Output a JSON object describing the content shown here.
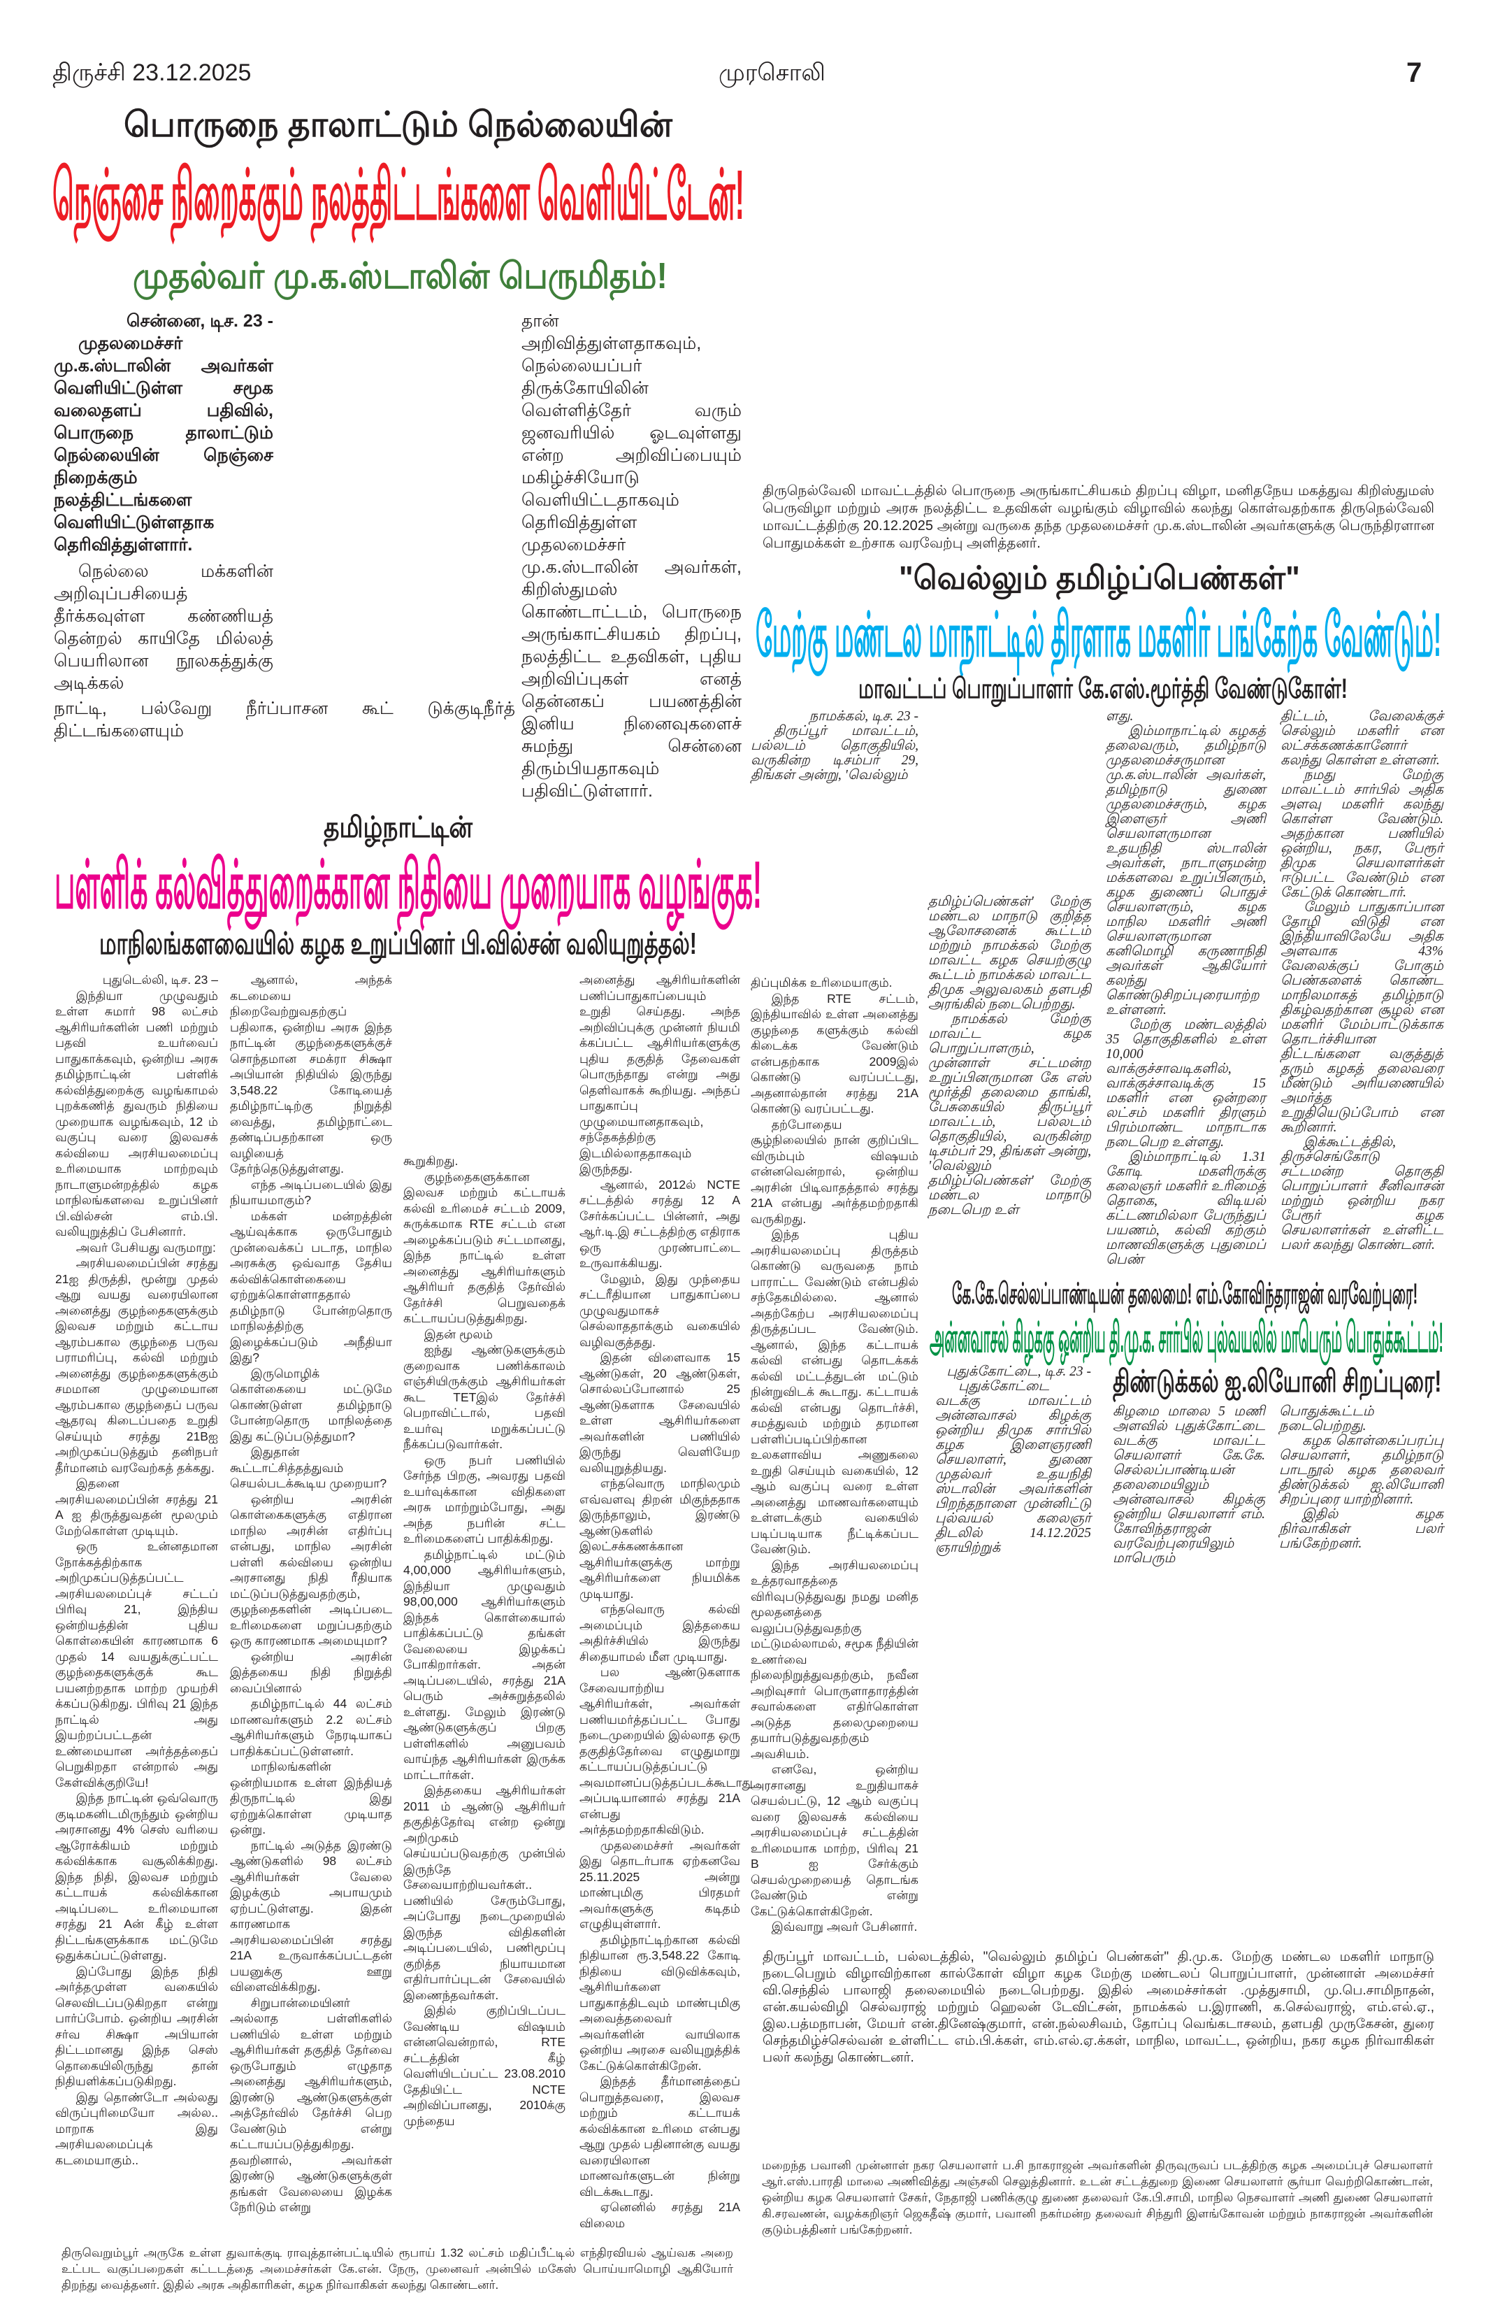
{
  "header": {
    "edition_date": "திருச்சி   23.12.2025",
    "masthead": "முரசொலி",
    "page_number": "7"
  },
  "colors": {
    "red_headline": "#ED1C24",
    "green_subhead": "#3F7F3A",
    "pink_headline": "#EC008C",
    "blue_headline": "#00AEEF",
    "green_headline": "#009245"
  },
  "story_nellai": {
    "kicker": "பொருநை தாலாட்டும் நெல்லையின்",
    "headline": "நெஞ்சை நிறைக்கும் நலத்திட்டங்களை வெளியிட்டேன்!",
    "subhead": "முதல்வர் மு.க.ஸ்டாலின் பெருமிதம்!",
    "dateline": "சென்னை, டிச. 23 -",
    "lead": "முதலமைச்சர் மு.க.ஸ்டாலின் அவர்கள் வெளியிட்டுள்ள சமூக வலைதளப் பதிவில், பொருநை தாலாட்டும் நெல்லையின் நெஞ்சை நிறைக்கும் நலத்திட்டங்களை வெளியிட்டுள்ளதாக தெரிவித்துள்ளார்.",
    "para1": "நெல்லை மக்களின் அறிவுப்பசியைத் தீர்க்கவுள்ள கண்ணியத் தென்றல் காயிதே மில்லத் பெயரிலான நூலகத்துக்கு அடிக்கல்",
    "span_line": "நாட்டி, பல்வேறு நீர்ப்பாசன கூட் டுக்குடிநீர்த் திட்டங்களையும்",
    "col2": "தான் அறிவித்துள்ளதாகவும், நெல்லையப்பர் திருக்கோயிலின் வெள்ளித்தேர் வரும் ஜனவரியில் ஓடவுள்ளது என்ற அறிவிப்பையும் மகிழ்ச்சியோடு வெளியிட்டதாகவும் தெரிவித்துள்ள முதலமைச்சர் மு.க.ஸ்டாலின் அவர்கள், கிறிஸ்துமஸ் கொண்டாட்டம், பொருநை அருங்காட்சியகம் திறப்பு, நலத்திட்ட உதவிகள், புதிய அறிவிப்புகள் எனத் தென்னகப் பயணத்தின் இனிய நினைவுகளைச் சுமந்து சென்னை திரும்பியதாகவும் பதிவிட்டுள்ளார்."
  },
  "photo_caption_nellai": "திருநெல்வேலி மாவட்டத்தில் பொருநை அருங்காட்சியகம் திறப்பு விழா, மனிதநேய மகத்துவ கிறிஸ்துமஸ் பெருவிழா மற்றும் அரசு நலத்திட்ட உதவிகள் வழங்கும் விழாவில் கலந்து கொள்வதற்காக திருநெல்வேலி மாவட்டத்திற்கு 20.12.2025 அன்று வருகை தந்த முதலமைச்சர் மு.க.ஸ்டாலின் அவர்களுக்கு பெருந்திரளான பொதுமக்கள் உற்சாக வரவேற்பு அளித்தனர்.",
  "story_wilson": {
    "kicker": "தமிழ்நாட்டின்",
    "headline": "பள்ளிக் கல்வித்துறைக்கான நிதியை முறையாக வழங்குக!",
    "subhead": "மாநிலங்களவையில் கழக உறுப்பினர் பி.வில்சன் வலியுறுத்தல்!",
    "col1": [
      "புதுடெல்லி, டிச. 23 –",
      "இந்தியா முழுவதும் உள்ள சுமார் 98 லட்சம் ஆசிரியர்களின் பணி மற்றும் பதவி உயர்வைப் பாதுகாக்கவும், ஒன்றிய அரசு தமிழ்நாட்டின் பள்ளிக் கல்வித்துறைக்கு வழங்காமல் புறக்கணித் துவரும் நிதியை முறையாக வழங்கவும், 12 ம் வகுப்பு வரை இலவசக் கல்வியை அரசியலமைப்பு உரிமையாக மாற்றவும் நாடாளுமன்றத்தில் கழக மாநிலங்களவை உறுப்பினர் பி.வில்சன் எம்.பி. வலியுறுத்திப் பேசினார்.",
      "அவர் பேசியது வருமாறு:",
      "அரசியலமைப்பின் சரத்து 21ஐ திருத்தி, மூன்று முதல் ஆறு வயது வரையிலான அனைத்து குழந்தைகளுக்கும் இலவச மற்றும் கட்டாய ஆரம்பகால குழந்தை பருவ பராமரிப்பு, கல்வி மற்றும் அனைத்து குழந்தைகளுக்கும் சமமான முழுமையான ஆரம்பகால குழந்தைப் பருவ ஆதரவு கிடைப்பதை உறுதி செய்யும் சரத்து 21Bஐ அறிமுகப்படுத்தும் தனிநபர் தீர்மானம் வரவேற்கத் தக்கது.",
      "இதனை அரசியலமைப்பின் சரத்து 21 A ஐ திருத்துவதன் மூலமும் மேற்கொள்ள முடியும்.",
      "ஒரு உன்னதமான நோக்கத்திற்காக அறிமுகப்படுத்தப்பட்ட அரசியலமைப்புச் சட்டப் பிரிவு 21, இந்திய ஒன்றியத்தின் புதிய கொள்கையின் காரணமாக 6 முதல் 14 வயதுக்குட்பட்ட குழந்தைகளுக்குக் கூட பயனற்றதாக மாற்ற முயற்சி க்கப்படுகிறது. பிரிவு 21 இந்த நாட்டில் அது இயற்றப்பட்டதன் உண்மையான அர்த்தத்தைப் பெறுகிறதா என்றால் அது கேள்விக்குறியே!",
      "இந்த நாட்டின் ஒவ்வொரு குடிமகனிடமிருந்தும் ஒன்றிய அரசானது 4% செஸ் வரியை ஆரோக்கியம் மற்றும் கல்விக்காக வசூலிக்கிறது. இந்த நிதி, இலவச மற்றும் கட்டாயக் கல்விக்கான அடிப்படை உரிமையான சரத்து 21 Aன் கீழ் உள்ள திட்டங்களுக்காக மட்டுமே ஒதுக்கப்பட்டுள்ளது.",
      "இப்போது இந்த நிதி அர்த்தமுள்ள வகையில் செலவிடப்படுகிறதா என்று பார்ப்போம். ஒன்றிய அரசின் சர்வ சிக்ஷா அபியான் திட்டமானது இந்த செஸ் தொகையிலிருந்து தான் நிதியளிக்கப்படுகிறது.",
      "இது தொண்டோ அல்லது விருப்புரிமையோ அல்ல.. மாறாக இது அரசியலமைப்புக் கடமையாகும்.."
    ],
    "col2": [
      "ஆனால், அந்தக் கடமையை நிறைவேற்றுவதற்குப் பதிலாக, ஒன்றிய அரசு இந்த நாட்டின் குழந்தைகளுக்குச் சொந்தமான சமக்ரா சிக்ஷா அபியான் நிதியில் இருந்து 3,548.22 கோடியைத் தமிழ்நாட்டிற்கு நிறுத்தி வைத்து, தமிழ்நாட்டை தண்டிப்பதற்கான ஒரு வழியைத் தேர்ந்தெடுத்துள்ளது.",
      "எந்த அடிப்படையில் இது நியாயமாகும்?",
      "மக்கள் மன்றத்தின் ஆய்வுக்காக ஒருபோதும் முன்வைக்கப் படாத, மாநில அரசுக்கு ஒவ்வாத தேசிய கல்விக்கொள்கையை ஏற்றுக்கொள்ளாததால் தமிழ்நாடு போன்றதொரு மாநிலத்திற்கு இழைக்கப்படும் அநீதியா இது?",
      "இருமொழிக் கொள்கையை மட்டுமே கொண்டுள்ள தமிழ்நாடு போன்றதொரு மாநிலத்தை இது கட்டுப்படுத்துமா?",
      "இதுதான் கூட்டாட்சித்தத்துவம் செயல்படக்கூடிய முறையா?",
      "ஒன்றிய அரசின் கொள்கைகளுக்கு எதிரான மாநில அரசின் எதிர்ப்பு என்பது, மாநில அரசின் பள்ளி கல்வியை ஒன்றிய அரசானது நிதி ரீதியாக மட்டுப்படுத்துவதற்கும், குழந்தைகளின் அடிப்படை உரிமைகளை மறுப்பதற்கும் ஒரு காரணமாக அமையுமா?",
      "ஒன்றிய அரசின் இத்தகைய நிதி நிறுத்தி வைப்பினால்",
      "தமிழ்நாட்டில் 44 லட்சம் மாணவர்களும் 2.2 லட்சம் ஆசிரியர்களும் நேரடியாகப் பாதிக்கப்பட்டுள்ளனர்.",
      "மாநிலங்களின் ஒன்றியமாக உள்ள இந்தியத் திருநாட்டில் இது ஏற்றுக்கொள்ள முடியாத ஒன்று.",
      "நாட்டில் அடுத்த இரண்டு ஆண்டுகளில் 98 லட்சம் ஆசிரியர்கள் வேலை இழக்கும் அபாயமும் ஏற்பட்டுள்ளது. இதன் காரணமாக அரசியலமைப்பின் சரத்து 21A உருவாக்கப்பட்டதன் பயனுக்கு ஊறு விளைவிக்கிறது.",
      "சிறுபான்மையினர் அல்லாத பள்ளிகளில் பணியில் உள்ள மற்றும் ஆசிரியர்கள் தகுதித் தேர்வை ஒருபோதும் எழுதாத அனைத்து ஆசிரியர்களும், இரண்டு ஆண்டுகளுக்குள் அத்தேர்வில் தேர்ச்சி பெற வேண்டும் என்று கட்டாயப்படுத்துகிறது. தவறினால், அவர்கள் இரண்டு ஆண்டுகளுக்குள் தங்கள் வேலையை இழக்க நேரிடும் என்று"
    ],
    "col3": [
      "கூறுகிறது.",
      "குழந்தைகளுக்கான இலவச மற்றும் கட்டாயக் கல்வி உரிமைச் சட்டம் 2009, சுருக்கமாக RTE சட்டம் என அழைக்கப்படும் சட்டமானது, இந்த நாட்டில் உள்ள அனைத்து ஆசிரியர்களும் ஆசிரியர் தகுதித் தேர்வில் தேர்ச்சி பெறுவதைக் கட்டாயப்படுத்துகிறது.",
      "இதன் மூலம்",
      "ஐந்து ஆண்டுகளுக்கும் குறைவாக பணிக்காலம் எஞ்சியிருக்கும் ஆசிரியர்கள் கூட TETஇல் தேர்ச்சி பெறாவிட்டால், பதவி உயர்வு மறுக்கப்பட்டு நீக்கப்படுவார்கள்.",
      "ஒரு நபர் பணியில் சேர்ந்த பிறகு, அவரது பதவி உயர்வுக்கான விதிகளை அரசு மாற்றும்போது, அது அந்த நபரின் சட்ட உரிமைகளைப் பாதிக்கிறது.",
      "தமிழ்நாட்டில் மட்டும் 4,00,000 ஆசிரியர்களும், இந்தியா முழுவதும் 98,00,000 ஆசிரியர்களும் இந்தக் கொள்கையால் பாதிக்கப்பட்டு தங்கள் வேலையை இழக்கப் போகிறார்கள். அதன் அடிப்படையில், சரத்து 21A பெரும் அச்சுறுத்தலில் உள்ளது. மேலும் இரண்டு ஆண்டுகளுக்குப் பிறகு பள்ளிகளில் அனுபவம் வாய்ந்த ஆசிரியர்கள் இருக்க மாட்டார்கள்.",
      "இத்தகைய ஆசிரியர்கள் 2011 ம் ஆண்டு ஆசிரியர் தகுதித்தேர்வு என்ற ஒன்று அறிமுகம் செய்யப்படுவதற்கு முன்பில் இருந்தே சேவையாற்றியவர்கள்.. பணியில் சேரும்போது, அப்போது நடைமுறையில் இருந்த விதிகளின் அடிப்படையில், பணிமூப்பு குறித்த நியாயமான எதிர்பார்ப்புடன் சேவையில் இணைந்தவர்கள்.",
      "இதில் குறிப்பிடப்பட வேண்டிய விஷயம் என்னவென்றால், RTE சட்டத்தின் கீழ் வெளியிடப்பட்ட 23.08.2010 தேதியிட்ட NCTE அறிவிப்பானது, 2010க்கு முந்தைய"
    ],
    "col4": [
      "அனைத்து ஆசிரியர்களின் பணிப்பாதுகாப்பையும் உறுதி செய்தது. அந்த அறிவிப்புக்கு முன்னர் நியமி க்கப்பட்ட ஆசிரியர்களுக்கு புதிய தகுதித் தேவைகள் பொருந்தாது என்று அது தெளிவாகக் கூறியது. அந்தப் பாதுகாப்பு முழுமையானதாகவும், சந்தேகத்திற்கு இடமில்லாததாகவும் இருந்தது.",
      "ஆனால், 2012ல் NCTE சட்டத்தில் சரத்து 12 A சேர்க்கப்பட்ட பின்னர், அது ஆர்.டி.இ சட்டத்திற்கு எதிராக ஒரு முரண்பாட்டை உருவாக்கியது.",
      "மேலும், இது முந்தைய சட்டரீதியான பாதுகாப்பை முழுவதுமாகச் செல்லாததாக்கும் வகையில் வழிவகுத்தது.",
      "இதன் விளைவாக 15 ஆண்டுகள், 20 ஆண்டுகள், சொல்லப்போனால் 25 ஆண்டுகளாக சேவையில் உள்ள ஆசிரியர்களை அவர்களின் பணியில் இருந்து வெளியேற வலியுறுத்தியது.",
      "எந்தவொரு மாநிலமும் எவ்வளவு திறன் மிகுந்ததாக இருந்தாலும், இரண்டு ஆண்டுகளில் இலட்சக்கணக்கான ஆசிரியர்களுக்கு மாற்று ஆசிரியர்களை நியமிக்க முடியாது.",
      "எந்தவொரு கல்வி அமைப்பும் இத்தகைய அதிர்ச்சியில் இருந்து சிதையாமல் மீள முடியாது.",
      "பல ஆண்டுகளாக சேவையாற்றிய ஆசிரியர்கள், அவர்கள் பணியமர்த்தப்பட்ட போது நடைமுறையில் இல்லாத ஒரு தகுதித்தேர்வை எழுதுமாறு கட்டாயப்படுத்தப்பட்டு அவமானப்படுத்தப்படக்கூடாது. அப்படியானால் சரத்து 21A என்பது அர்த்தமற்றதாகிவிடும்.",
      "முதலமைச்சர் அவர்கள் இது தொடர்பாக ஏற்கனவே 25.11.2025 அன்று மாண்புமிகு பிரதமர் அவர்களுக்கு கடிதம் எழுதியுள்ளார்.",
      "தமிழ்நாட்டிற்கான கல்வி நிதியான ரூ.3,548.22 கோடி நிதியை விடுவிக்கவும், ஆசிரியர்களை பாதுகாத்திடவும் மாண்புமிகு அவைத்தலைவர் அவர்களின் வாயிலாக ஒன்றிய அரசை வலியுறுத்திக் கேட்டுக்கொள்கிறேன்.",
      "இந்தத் தீர்மானத்தைப் பொறுத்தவரை, இலவச மற்றும் கட்டாயக் கல்விக்கான உரிமை என்பது ஆறு முதல் பதினான்கு வயது வரையிலான மாணவர்களுடன் நின்று விடக்கூடாது.",
      "ஏனெனில் சரத்து 21A விலைம"
    ],
    "col5": [
      "திப்புமிக்க உரிமையாகும்.",
      "இந்த RTE சட்டம், இந்தியாவில் உள்ள அனைத்து குழந்தை களுக்கும் கல்வி கிடைக்க வேண்டும் என்பதற்காக 2009இல் கொண்டு வரப்பட்டது, அதனால்தான் சரத்து 21A கொண்டு வரப்பட்டது.",
      "தற்போதைய சூழ்நிலையில் நான் குறிப்பிட விரும்பும் விஷயம் என்னவென்றால், ஒன்றிய அரசின் பிடிவாதத்தால் சரத்து 21A என்பது அர்த்தமற்றதாகி வருகிறது.",
      "இந்த புதிய அரசியலமைப்பு திருத்தம் கொண்டு வருவதை நாம் பாராட்ட வேண்டும் என்பதில் சந்தேகமில்லை. ஆனால் அதற்கேற்ப அரசியலமைப்பு திருத்தப்பட வேண்டும். ஆனால், இந்த கட்டாயக் கல்வி என்பது தொடக்கக் கல்வி மட்டத்துடன் மட்டும் நின்றுவிடக் கூடாது. கட்டாயக் கல்வி என்பது தொடர்ச்சி, சமத்துவம் மற்றும் தரமான பள்ளிப்படிப்பிற்கான உலகளாவிய அணுகலை உறுதி செய்யும் வகையில், 12 ஆம் வகுப்பு வரை உள்ள அனைத்து மாணவர்களையும் உள்ளடக்கும் வகையில் படிப்படியாக நீட்டிக்கப்பட வேண்டும்.",
      "இந்த அரசியலமைப்பு உத்தரவாதத்தை விரிவுபடுத்துவது நமது மனித மூலதனத்தை வலுப்படுத்துவதற்கு மட்டுமல்லாமல், சமூக நீதியின் உணர்வை நிலைநிறுத்துவதற்கும், நவீன அறிவுசார் பொருளாதாரத்தின் சவால்களை எதிர்கொள்ள அடுத்த தலைமுறையை தயார்படுத்துவதற்கும் அவசியம்.",
      "எனவே, ஒன்றிய அரசானது உறுதியாகச் செயல்பட்டு, 12 ஆம் வகுப்பு வரை இலவசக் கல்வியை அரசியலமைப்புச் சட்டத்தின் உரிமையாக மாற்ற, பிரிவு 21 B ஐ சேர்க்கும் செயல்முறையைத் தொடங்க வேண்டும் என்று கேட்டுக்கொள்கிறேன்.",
      "இவ்வாறு அவர் பேசினார்."
    ]
  },
  "story_women": {
    "kicker": "\"வெல்லும்  தமிழ்ப்பெண்கள்\"",
    "headline": "மேற்கு மண்டல மாநாட்டில் திரளாக மகளிர் பங்கேற்க வேண்டும்!",
    "subhead": "மாவட்டப் பொறுப்பாளர் கே.எஸ்.மூர்த்தி வேண்டுகோள்!",
    "col1": [
      "நாமக்கல், டிச. 23 -",
      "திருப்பூர் மாவட்டம், பல்லடம் தொகுதியில், வருகின்ற டிசம்பர் 29, திங்கள் அன்று, 'வெல்லும்"
    ],
    "col2": [
      "தமிழ்ப்பெண்கள்' மேற்கு மண்டல மாநாடு குறித்த ஆலோசனைக் கூட்டம் மற்றும் நாமக்கல் மேற்கு மாவட்ட கழக செயற்குழு கூட்டம் நாமக்கல் மாவட்ட திமுக அலுவலகம் தளபதி அரங்கில் நடைபெற்றது.",
      "நாமக்கல் மேற்கு மாவட்ட கழக பொறுப்பாளரும், முன்னாள் சட்டமன்ற உறுப்பினருமான கே எஸ் மூர்த்தி தலைமை தாங்கி, பேசுகையில் திருப்பூர் மாவட்டம், பல்லடம் தொகுதியில், வருகின்ற டிசம்பர் 29, திங்கள் அன்று, 'வெல்லும் தமிழ்ப்பெண்கள்' மேற்கு மண்டல மாநாடு நடைபெற உள்"
    ],
    "col3": [
      "ளது.",
      "இம்மாநாட்டில் கழகத் தலைவரும், தமிழ்நாடு முதலமைச்சருமான மு.க.ஸ்டாலின் அவர்கள், தமிழ்நாடு துணை முதலமைச்சரும், கழக இளைஞர் அணி செயலாளருமான உதயநிதி ஸ்டாலின் அவர்கள், நாடாளுமன்ற மக்களவை உறுப்பினரும், கழக துணைப் பொதுச் செயலாளரும், கழக மாநில மகளிர் அணி செயலாளருமான கனிமொழி கருணாநிதி அவர்கள் ஆகியோர் கலந்து கொண்டுசிறப்புரையாற்ற உள்ளனர்.",
      "மேற்கு மண்டலத்தில் 35 தொகுதிகளில் உள்ள 10,000 வாக்குச்சாவடிகளில், வாக்குச்சாவடிக்கு 15 மகளிர் என ஒன்றரை லட்சம் மகளிர் திரளும் பிரம்மாண்ட மாநாடாக நடைபெற உள்ளது.",
      "இம்மாநாட்டில் 1.31 கோடி மகளிருக்கு கலைஞர் மகளிர் உரிமைத் தொகை, விடியல் கட்டணமில்லா பேருந்துப் பயணம், கல்வி கற்கும் மாணவிகளுக்கு புதுமைப் பெண்"
    ],
    "col4": [
      "திட்டம், வேலைக்குச் செல்லும் மகளிர் என லட்சக்கணக்கானோர் கலந்து கொள்ள உள்ளனர்.",
      "நமது மேற்கு மாவட்டம் சார்பில் அதிக அளவு மகளிர் கலந்து கொள்ள வேண்டும். அதற்கான பணியில் ஒன்றிய, நகர, பேரூர் திமுக செயலாளர்கள் ஈடுபட்ட வேண்டும் என கேட்டுக் கொண்டார்.",
      "மேலும் பாதுகாப்பான தோழி விடுதி என இந்தியாவிலேயே அதிக அளவாக 43% வேலைக்குப் போகும் பெண்களைக் கொண்ட மாநிலமாகத் தமிழ்நாடு திகழ்வதற்கான சூழல் என மகளிர் மேம்பாட்டுக்காக தொடர்ச்சியான திட்டங்களை வகுத்துத் தரும் கழகத் தலைவரை மீண்டும் அரியணையில் அமர்த்த உறுதியெடுப்போம் என கூறினார்.",
      "இக்கூட்டத்தில், திருச்செங்கோடு சட்டமன்ற தொகுதி பொறுப்பாளர் சீனிவாசன் மற்றும் ஒன்றிய நகர பேரூர் கழக செயலாளர்கள் உள்ளிட்ட பலர் கலந்து கொண்டனர்."
    ]
  },
  "story_pudukkottai": {
    "kicker": "கே.கே.செல்லப்பாண்டியன் தலைமை! எம்.கோவிந்தராஜன் வரவேற்புரை!",
    "headline": "அன்னவாசல் கிழக்கு ஒன்றிய தி.மு.க. சார்பில் புல்வயலில் மாபெரும் பொதுக்கூட்டம்!",
    "subhead": "திண்டுக்கல் ஐ.லியோனி சிறப்புரை!",
    "col1": [
      "புதுக்கோட்டை, டிச. 23 -",
      "புதுக்கோட்டை வடக்கு மாவட்டம் அன்னவாசல் கிழக்கு ஒன்றிய திமுக சார்பில் கழக இளைஞரணி செயலாளர், துணை முதல்வர் உதயநிதி ஸ்டாலின் அவர்களின் பிறந்தநாளை முன்னிட்டு புல்வயல் கலைஞர் திடலில் 14.12.2025 ஞாயிற்றுக்"
    ],
    "col2": [
      "கிழமை மாலை 5 மணி அளவில் புதுக்கோட்டை வடக்கு மாவட்ட செயலாளர் கே.கே. செல்லப்பாண்டியன் தலைமையிலும் அன்னவாசல் கிழக்கு ஒன்றிய செயலாளர் எம். கோவிந்தராஜன் வரவேற்புரையிலும் மாபெரும்"
    ],
    "col3": [
      "பொதுக்கூட்டம் நடைபெற்றது.",
      "கழக கொள்கைப்பரப்பு செயலாளர், தமிழ்நாடு பாடநூல் கழக தலைவர் திண்டுக்கல் ஐ.லியோனி சிறப்புரை யாற்றினார்.",
      "இதில் கழக நிர்வாகிகள் பலர் பங்கேற்றனர்."
    ]
  },
  "photo_caption_palladam": "திருப்பூர் மாவட்டம், பல்லடத்தில், \"வெல்லும் தமிழ்ப் பெண்கள்\" தி.மு.க. மேற்கு மண்டல மகளிர் மாநாடு நடைபெறும் விழாவிற்கான கால்கோள் விழா கழக மேற்கு மண்டலப் பொறுப்பாளர், முன்னாள் அமைச்சர் வி.செந்தில் பாலாஜி தலைமையில் நடைபெற்றது. இதில் அமைச்சர்கள் .முத்துசாமி, மு.பெ.சாமிநாதன், என்.கயல்விழி செல்வராஜ் மற்றும் ஹெலன் டேவிட்சன், நாமக்கல் ப.இராணி, க.செல்வராஜ், எம்.எல்.ஏ., இல.பத்மநாபன், மேயர் என்.தினேஷ்குமார், என்.நல்லசிவம், தோப்பு வெங்கடாசலம், தளபதி முருகேசன், துரை செந்தமிழ்ச்செல்வன் உள்ளிட்ட எம்.பி.க்கள், எம்.எல்.ஏ.க்கள், மாநில, மாவட்ட, ஒன்றிய, நகர கழக நிர்வாகிகள் பலர் கலந்து கொண்டனர்.",
  "photo_caption_thiruverumbur": "திருவெறும்பூர் அருகே உள்ள துவாக்குடி ராவுத்தான்பட்டியில் ரூபாய் 1.32 லட்சம் மதிப்பீட்டில் எந்திரவியல் ஆய்வக அறை உட்பட வகுப்பறைகள் கட்டடத்தை அமைச்சர்கள் கே.என். நேரு, முனைவர் அன்பில் மகேஸ் பொய்யாமொழி ஆகியோர் திறந்து வைத்தனர். இதில் அரசு அதிகாரிகள், கழக நிர்வாகிகள் கலந்து கொண்டனர்.",
  "photo_caption_bhavani": "மறைந்த பவானி முன்னாள் நகர செயலாளர் ப.சி நாகராஜன் அவர்களின் திருவுருவப் படத்திற்கு கழக அமைப்புச் செயலாளர் ஆர்.எஸ்.பாரதி மாலை அணிவித்து அஞ்சலி செலுத்தினார். உடன் சட்டத்துறை இணை செயலாளர் சூர்யா வெற்றிகொண்டான், ஒன்றிய கழக செயலாளர் சேகர், நேதாஜி பணிக்குழு துணை தலைவர் கே.பி.சாமி, மாநில நெசவாளர் அணி துணை செயலாளர் கி.சரவணன், வழக்கறிஞர் ஜெகதீஷ் குமார், பவானி நகர்மன்ற தலைவர் சிந்துரி இளங்கோவன் மற்றும் நாகராஜன் அவர்களின் குடும்பத்தினர் பங்கேற்றனர்."
}
